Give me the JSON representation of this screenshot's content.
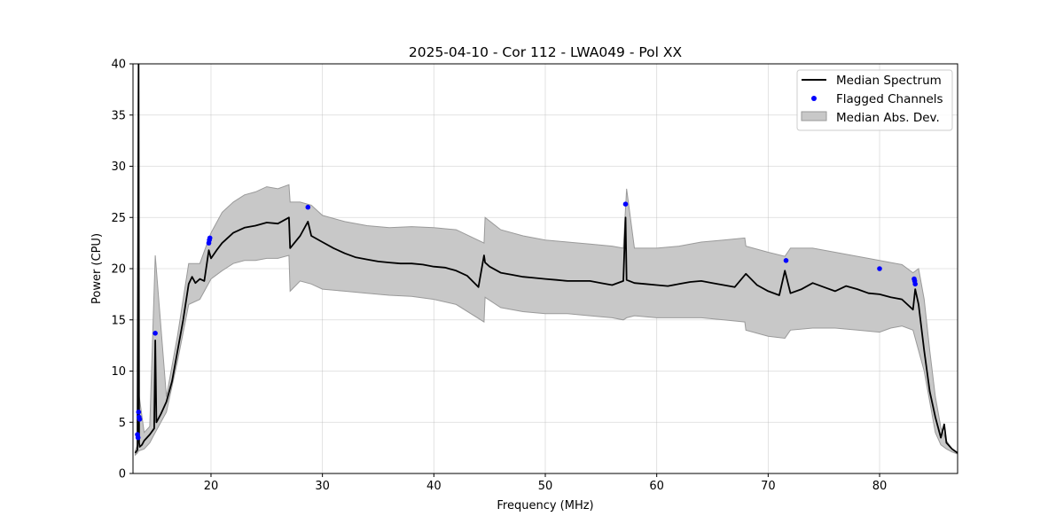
{
  "chart_data": {
    "type": "line",
    "title": "2025-04-10 - Cor 112 - LWA049 - Pol XX",
    "xlabel": "Frequency (MHz)",
    "ylabel": "Power (CPU)",
    "xlim": [
      13,
      87
    ],
    "ylim": [
      0,
      40
    ],
    "x_ticks": [
      20,
      30,
      40,
      50,
      60,
      70,
      80
    ],
    "y_ticks": [
      0,
      5,
      10,
      15,
      20,
      25,
      30,
      35,
      40
    ],
    "grid": true,
    "legend_position": "upper right",
    "legend": [
      "Median Spectrum",
      "Flagged Channels",
      "Median Abs. Dev."
    ],
    "colors": {
      "median": "#000000",
      "flagged": "#0000ff",
      "mad_fill": "#c8c8c8",
      "mad_edge": "#9a9a9a"
    },
    "series": [
      {
        "name": "Median Spectrum",
        "x": [
          13.2,
          13.4,
          13.5,
          13.55,
          13.6,
          13.8,
          14.0,
          14.5,
          14.9,
          15.0,
          15.1,
          15.5,
          16.0,
          16.5,
          17.0,
          17.5,
          18.0,
          18.3,
          18.6,
          19.0,
          19.4,
          19.8,
          20.0,
          20.5,
          21.0,
          22.0,
          23.0,
          24.0,
          25.0,
          26.0,
          27.0,
          27.1,
          28.0,
          28.7,
          29.0,
          30.0,
          31.0,
          32.0,
          33.0,
          34.0,
          35.0,
          36.0,
          37.0,
          38.0,
          39.0,
          40.0,
          41.0,
          42.0,
          43.0,
          44.0,
          44.5,
          44.6,
          45.0,
          46.0,
          47.0,
          48.0,
          49.0,
          50.0,
          51.0,
          52.0,
          53.0,
          54.0,
          55.0,
          56.0,
          57.0,
          57.2,
          57.3,
          58.0,
          59.0,
          60.0,
          61.0,
          62.0,
          63.0,
          64.0,
          65.0,
          66.0,
          67.0,
          68.0,
          69.0,
          70.0,
          71.0,
          71.5,
          72.0,
          73.0,
          74.0,
          75.0,
          76.0,
          77.0,
          78.0,
          79.0,
          80.0,
          81.0,
          82.0,
          82.5,
          83.0,
          83.2,
          83.5,
          84.0,
          84.5,
          85.0,
          85.5,
          85.8,
          86.0,
          86.5,
          87.0
        ],
        "y": [
          2.0,
          2.3,
          40.0,
          3.0,
          2.6,
          2.8,
          3.2,
          3.8,
          4.4,
          13.0,
          5.0,
          5.8,
          7.0,
          9.0,
          12.0,
          15.0,
          18.5,
          19.2,
          18.6,
          19.0,
          18.8,
          21.8,
          21.0,
          21.8,
          22.5,
          23.5,
          24.0,
          24.2,
          24.5,
          24.4,
          25.0,
          22.0,
          23.2,
          24.6,
          23.2,
          22.6,
          22.0,
          21.5,
          21.1,
          20.9,
          20.7,
          20.6,
          20.5,
          20.5,
          20.4,
          20.2,
          20.1,
          19.8,
          19.3,
          18.2,
          21.3,
          20.6,
          20.2,
          19.6,
          19.4,
          19.2,
          19.1,
          19.0,
          18.9,
          18.8,
          18.8,
          18.8,
          18.6,
          18.4,
          18.8,
          25.0,
          18.9,
          18.6,
          18.5,
          18.4,
          18.3,
          18.5,
          18.7,
          18.8,
          18.6,
          18.4,
          18.2,
          19.5,
          18.4,
          17.8,
          17.4,
          19.8,
          17.6,
          18.0,
          18.6,
          18.2,
          17.8,
          18.3,
          18.0,
          17.6,
          17.5,
          17.2,
          17.0,
          16.5,
          16.0,
          18.0,
          16.5,
          12.0,
          8.0,
          5.5,
          3.5,
          4.8,
          3.0,
          2.4,
          2.0
        ]
      },
      {
        "name": "Flagged Channels",
        "x": [
          13.4,
          13.45,
          13.5,
          13.55,
          13.6,
          15.0,
          19.8,
          19.85,
          19.9,
          28.7,
          57.2,
          71.6,
          80.0,
          83.1,
          83.15,
          83.2
        ],
        "y": [
          3.8,
          3.5,
          6.0,
          5.5,
          5.3,
          13.7,
          22.5,
          22.8,
          23.0,
          26.0,
          26.3,
          20.8,
          20.0,
          19.0,
          18.8,
          18.5
        ]
      },
      {
        "name": "Median Abs. Dev.",
        "x": [
          13.2,
          13.4,
          13.5,
          14.0,
          14.5,
          15.0,
          16.0,
          17.0,
          18.0,
          19.0,
          20.0,
          21.0,
          22.0,
          23.0,
          24.0,
          25.0,
          26.0,
          27.0,
          27.1,
          28.0,
          29.0,
          30.0,
          32.0,
          34.0,
          36.0,
          38.0,
          40.0,
          42.0,
          44.5,
          44.6,
          46.0,
          48.0,
          50.0,
          52.0,
          54.0,
          56.0,
          57.0,
          57.3,
          58.0,
          60.0,
          62.0,
          64.0,
          66.0,
          67.9,
          68.0,
          70.0,
          71.5,
          72.0,
          74.0,
          76.0,
          78.0,
          80.0,
          81.0,
          82.0,
          83.0,
          83.5,
          84.0,
          84.5,
          85.0,
          85.5,
          86.0,
          86.5,
          87.0
        ],
        "upper": [
          2.2,
          2.8,
          8.0,
          4.0,
          4.6,
          21.3,
          7.5,
          13.5,
          20.5,
          20.5,
          23.5,
          25.5,
          26.5,
          27.2,
          27.5,
          28.0,
          27.8,
          28.2,
          26.5,
          26.5,
          26.2,
          25.2,
          24.6,
          24.2,
          24.0,
          24.1,
          24.0,
          23.8,
          22.5,
          25.0,
          23.8,
          23.2,
          22.8,
          22.6,
          22.4,
          22.2,
          22.0,
          27.8,
          22.0,
          22.0,
          22.2,
          22.6,
          22.8,
          23.0,
          22.2,
          21.6,
          21.2,
          22.0,
          22.0,
          21.6,
          21.2,
          20.8,
          20.6,
          20.4,
          19.6,
          20.0,
          17.0,
          12.0,
          7.5,
          4.5,
          3.2,
          2.4,
          2.0
        ],
        "lower": [
          1.8,
          2.0,
          2.2,
          2.4,
          3.0,
          4.0,
          6.0,
          11.0,
          16.5,
          17.0,
          19.0,
          19.8,
          20.5,
          20.8,
          20.8,
          21.0,
          21.0,
          21.3,
          17.8,
          18.8,
          18.5,
          18.0,
          17.8,
          17.6,
          17.4,
          17.3,
          17.0,
          16.5,
          14.8,
          17.2,
          16.2,
          15.8,
          15.6,
          15.6,
          15.4,
          15.2,
          15.0,
          15.2,
          15.4,
          15.2,
          15.2,
          15.2,
          15.0,
          14.8,
          14.0,
          13.4,
          13.2,
          14.0,
          14.2,
          14.2,
          14.0,
          13.8,
          14.2,
          14.4,
          14.0,
          12.0,
          10.0,
          7.0,
          4.0,
          2.8,
          2.4,
          2.1,
          1.9
        ]
      }
    ]
  }
}
